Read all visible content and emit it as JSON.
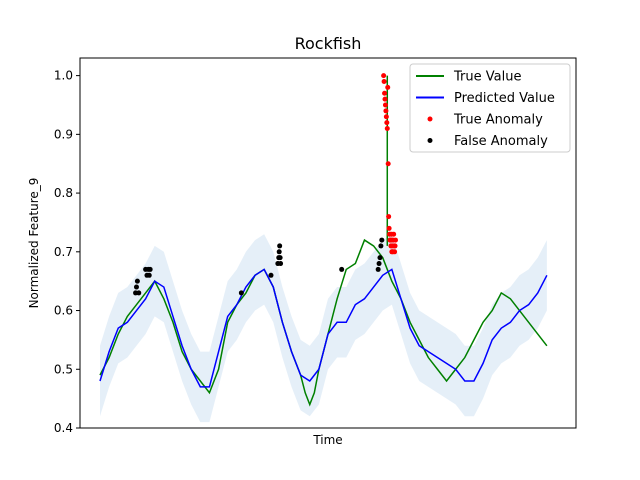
{
  "chart_data": {
    "type": "line",
    "title": "Rockfish",
    "xlabel": "Time",
    "ylabel": "Normalized Feature_9",
    "x_ticks_shown": false,
    "xlim": [
      0,
      1000
    ],
    "ylim": [
      0.4,
      1.03
    ],
    "yticks": [
      "0.4",
      "0.5",
      "0.6",
      "0.7",
      "0.8",
      "0.9",
      "1.0"
    ],
    "grid": false,
    "legend_position": "top-right",
    "colors": {
      "true_value": "#008000",
      "predicted_value": "#0000ff",
      "band": "#c6dbef",
      "true_anomaly": "#ff0000",
      "false_anomaly": "#000000"
    },
    "series": [
      {
        "name": "True Value",
        "kind": "line",
        "x": [
          0,
          20,
          40,
          60,
          80,
          100,
          120,
          140,
          160,
          180,
          200,
          220,
          240,
          260,
          280,
          300,
          320,
          340,
          360,
          380,
          400,
          420,
          440,
          450,
          460,
          470,
          480,
          500,
          520,
          540,
          560,
          580,
          600,
          620,
          640,
          660,
          680,
          700,
          720,
          740,
          760,
          780,
          800,
          820,
          840,
          860,
          880,
          900,
          920,
          940,
          960,
          980
        ],
        "y": [
          0.49,
          0.52,
          0.56,
          0.59,
          0.61,
          0.63,
          0.65,
          0.62,
          0.58,
          0.53,
          0.5,
          0.48,
          0.46,
          0.5,
          0.58,
          0.61,
          0.63,
          0.66,
          0.67,
          0.64,
          0.58,
          0.53,
          0.49,
          0.46,
          0.44,
          0.46,
          0.5,
          0.56,
          0.62,
          0.67,
          0.68,
          0.72,
          0.71,
          0.69,
          0.65,
          0.62,
          0.58,
          0.55,
          0.52,
          0.5,
          0.48,
          0.5,
          0.52,
          0.55,
          0.58,
          0.6,
          0.63,
          0.62,
          0.6,
          0.58,
          0.56,
          0.54
        ]
      },
      {
        "name": "Predicted Value",
        "kind": "line",
        "x": [
          0,
          20,
          40,
          60,
          80,
          100,
          120,
          140,
          160,
          180,
          200,
          220,
          240,
          260,
          280,
          300,
          320,
          340,
          360,
          380,
          400,
          420,
          440,
          460,
          480,
          500,
          520,
          540,
          560,
          580,
          600,
          620,
          640,
          660,
          680,
          700,
          720,
          740,
          760,
          780,
          800,
          820,
          840,
          860,
          880,
          900,
          920,
          940,
          960,
          980
        ],
        "y": [
          0.48,
          0.53,
          0.57,
          0.58,
          0.6,
          0.62,
          0.65,
          0.64,
          0.59,
          0.54,
          0.5,
          0.47,
          0.47,
          0.53,
          0.59,
          0.61,
          0.64,
          0.66,
          0.67,
          0.64,
          0.58,
          0.53,
          0.49,
          0.48,
          0.5,
          0.56,
          0.58,
          0.58,
          0.61,
          0.62,
          0.64,
          0.66,
          0.67,
          0.62,
          0.57,
          0.54,
          0.53,
          0.52,
          0.51,
          0.5,
          0.48,
          0.48,
          0.51,
          0.55,
          0.57,
          0.58,
          0.6,
          0.61,
          0.63,
          0.66
        ]
      }
    ],
    "anomalies": {
      "true": {
        "name": "True Anomaly",
        "x": [
          622,
          623,
          624,
          625,
          626,
          627,
          628,
          629,
          630,
          631,
          632,
          633,
          634,
          635,
          636,
          637,
          638,
          639,
          640,
          640,
          641,
          642,
          643,
          644,
          645,
          646,
          647,
          648
        ],
        "y": [
          1.0,
          0.99,
          0.97,
          0.96,
          0.95,
          0.94,
          0.93,
          0.92,
          0.91,
          0.98,
          0.85,
          0.76,
          0.74,
          0.73,
          0.72,
          0.72,
          0.71,
          0.73,
          0.72,
          0.7,
          0.71,
          0.7,
          0.72,
          0.73,
          0.71,
          0.7,
          0.71,
          0.72
        ]
      },
      "false": {
        "name": "False Anomaly",
        "x": [
          78,
          80,
          82,
          85,
          100,
          103,
          106,
          108,
          110,
          310,
          375,
          390,
          392,
          393,
          394,
          395,
          396,
          530,
          610,
          612,
          614,
          616,
          618
        ],
        "y": [
          0.63,
          0.64,
          0.65,
          0.63,
          0.67,
          0.66,
          0.67,
          0.66,
          0.67,
          0.63,
          0.66,
          0.68,
          0.69,
          0.7,
          0.71,
          0.69,
          0.68,
          0.67,
          0.67,
          0.68,
          0.69,
          0.71,
          0.72
        ]
      }
    },
    "legend": [
      {
        "label": "True Value",
        "swatch": "line",
        "color": "#008000"
      },
      {
        "label": "Predicted Value",
        "swatch": "line",
        "color": "#0000ff"
      },
      {
        "label": "True Anomaly",
        "swatch": "dot",
        "color": "#ff0000"
      },
      {
        "label": "False Anomaly",
        "swatch": "dot",
        "color": "#000000"
      }
    ]
  }
}
